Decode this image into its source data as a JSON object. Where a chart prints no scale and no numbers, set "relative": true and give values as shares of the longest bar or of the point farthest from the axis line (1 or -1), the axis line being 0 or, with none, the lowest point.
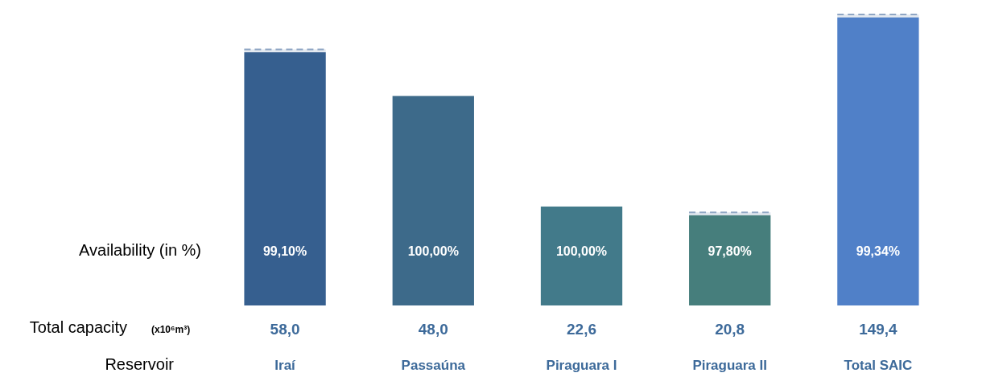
{
  "chart_data": {
    "type": "bar",
    "relative": true,
    "stacked": true,
    "categories": [
      "Iraí",
      "Passaúna",
      "Piraguara I",
      "Piraguara II",
      "Total SAIC"
    ],
    "series": [
      {
        "colors": [
          "#365f8f",
          "#3d6a8a",
          "#427a8a",
          "#467e7c",
          "#5080c8"
        ],
        "values": [
          0.87,
          0.72,
          0.34,
          0.31,
          0.99
        ]
      },
      {
        "color": "#8fa6c4",
        "line_style": "dashed",
        "values": [
          0.01,
          0,
          0,
          0.01,
          0.01
        ]
      }
    ],
    "annotations": [
      "Availability (in %)",
      "Total capacity",
      "(x10⁶m³)",
      "Reservoir",
      "99,10%",
      "100,00%",
      "100,00%",
      "97,80%",
      "99,34%",
      "58,0",
      "48,0",
      "22,6",
      "20,8",
      "149,4"
    ]
  }
}
